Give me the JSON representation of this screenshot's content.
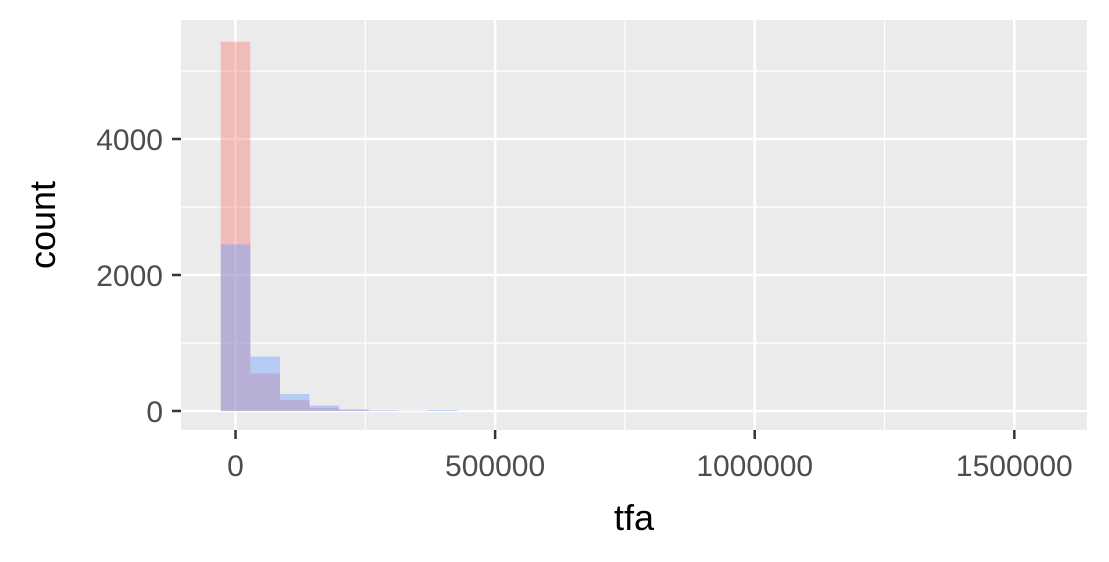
{
  "chart_data": {
    "type": "histogram",
    "title": "",
    "xlabel": "tfa",
    "ylabel": "count",
    "xlim": [
      -105000,
      1640000
    ],
    "ylim": [
      -280,
      5750
    ],
    "x_ticks": [
      0,
      500000,
      1000000,
      1500000
    ],
    "x_tick_labels": [
      "0",
      "500000",
      "1000000",
      "1500000"
    ],
    "y_ticks": [
      0,
      2000,
      4000
    ],
    "y_tick_labels": [
      "0",
      "2000",
      "4000"
    ],
    "x_minor": [
      250000,
      750000,
      1250000
    ],
    "y_minor": [
      1000,
      3000,
      5000
    ],
    "grid": true,
    "legend": "none",
    "bin_width": 57000,
    "series": [
      {
        "color": "#F8766D",
        "bins": [
          {
            "x0": -28500,
            "x1": 28500,
            "count": 5430
          },
          {
            "x0": 28500,
            "x1": 85500,
            "count": 550
          },
          {
            "x0": 85500,
            "x1": 142500,
            "count": 160
          },
          {
            "x0": 142500,
            "x1": 199500,
            "count": 45
          },
          {
            "x0": 199500,
            "x1": 256500,
            "count": 15
          },
          {
            "x0": 256500,
            "x1": 313500,
            "count": 6
          },
          {
            "x0": 313500,
            "x1": 370500,
            "count": 2
          },
          {
            "x0": 370500,
            "x1": 427500,
            "count": 1
          }
        ]
      },
      {
        "color": "#619CFF",
        "bins": [
          {
            "x0": -28500,
            "x1": 28500,
            "count": 2450
          },
          {
            "x0": 28500,
            "x1": 85500,
            "count": 800
          },
          {
            "x0": 85500,
            "x1": 142500,
            "count": 250
          },
          {
            "x0": 142500,
            "x1": 199500,
            "count": 80
          },
          {
            "x0": 199500,
            "x1": 256500,
            "count": 25
          },
          {
            "x0": 256500,
            "x1": 313500,
            "count": 10
          },
          {
            "x0": 313500,
            "x1": 370500,
            "count": 4
          },
          {
            "x0": 370500,
            "x1": 427500,
            "count": 15
          },
          {
            "x0": 427500,
            "x1": 484500,
            "count": 2
          }
        ]
      }
    ]
  }
}
